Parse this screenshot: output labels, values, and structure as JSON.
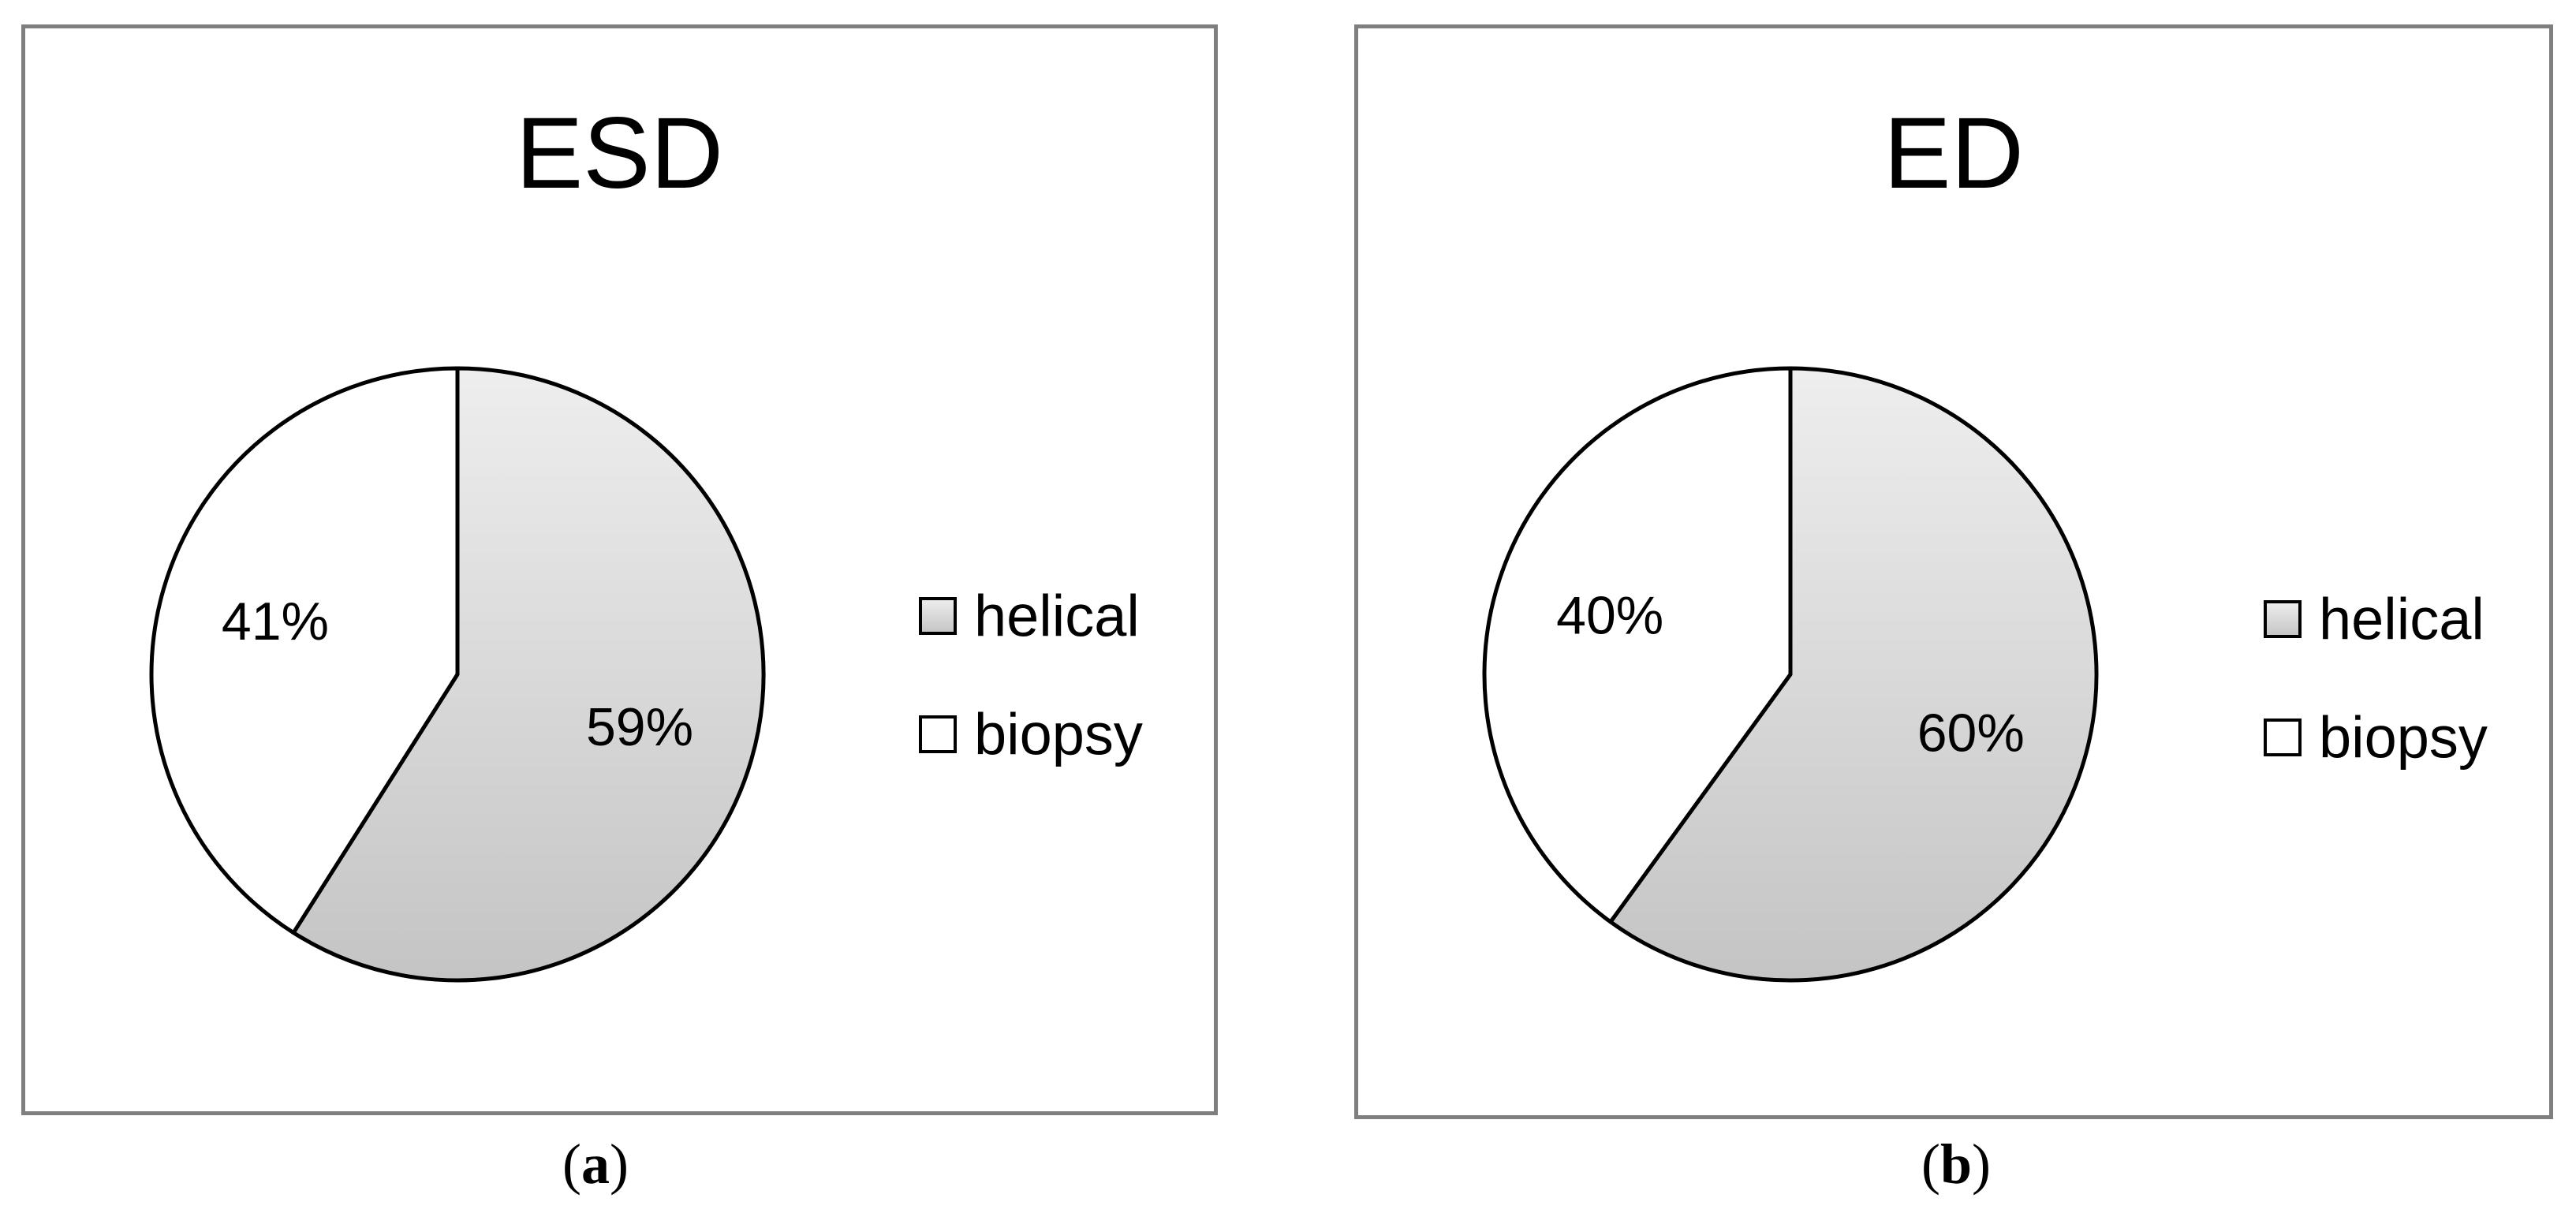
{
  "chart_data": [
    {
      "type": "pie",
      "title": "ESD",
      "categories": [
        "helical",
        "biopsy"
      ],
      "values": [
        59,
        41
      ],
      "value_labels": [
        "59%",
        "41%"
      ],
      "colors": [
        "#d9d9d9",
        "#ffffff"
      ],
      "legend_position": "right",
      "caption": "a"
    },
    {
      "type": "pie",
      "title": "ED",
      "categories": [
        "helical",
        "biopsy"
      ],
      "values": [
        60,
        40
      ],
      "value_labels": [
        "60%",
        "40%"
      ],
      "colors": [
        "#d9d9d9",
        "#ffffff"
      ],
      "legend_position": "right",
      "caption": "b"
    }
  ]
}
